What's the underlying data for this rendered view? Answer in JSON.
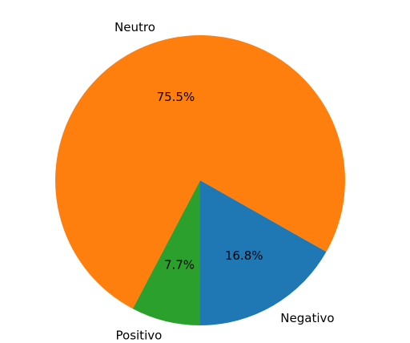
{
  "chart_data": {
    "type": "pie",
    "title": "",
    "start_angle": -90,
    "direction": "counterclockwise",
    "slices": [
      {
        "name": "Negativo",
        "value": 16.8,
        "pct_label": "16.8%",
        "color": "#1f77b4"
      },
      {
        "name": "Neutro",
        "value": 75.5,
        "pct_label": "75.5%",
        "color": "#ff7f0e"
      },
      {
        "name": "Positivo",
        "value": 7.7,
        "pct_label": "7.7%",
        "color": "#2ca02c"
      }
    ]
  }
}
